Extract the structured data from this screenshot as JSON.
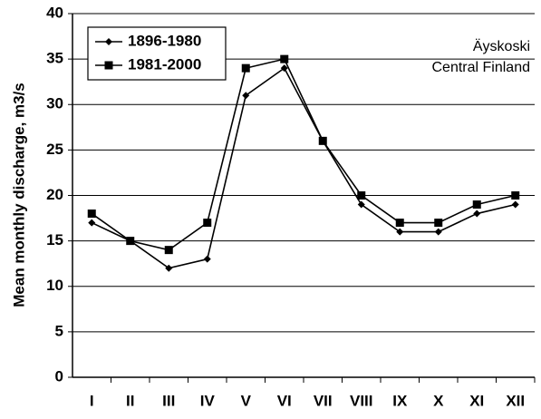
{
  "chart_data": {
    "type": "line",
    "y_label": "Mean monthly discharge, m3/s",
    "annotations": [
      "Äyskoski",
      "Central Finland"
    ],
    "categories": [
      "I",
      "II",
      "III",
      "IV",
      "V",
      "VI",
      "VII",
      "VIII",
      "IX",
      "X",
      "XI",
      "XII"
    ],
    "series": [
      {
        "name": "1896-1980",
        "color": "#000000",
        "marker": "diamond",
        "values": [
          17,
          15,
          12,
          13,
          31,
          34,
          26,
          19,
          16,
          16,
          18,
          19
        ]
      },
      {
        "name": "1981-2000",
        "color": "#000000",
        "marker": "square",
        "values": [
          18,
          15,
          14,
          17,
          34,
          35,
          26,
          20,
          17,
          17,
          19,
          20
        ]
      }
    ],
    "ylim": [
      0,
      40
    ],
    "yticks": [
      0,
      5,
      10,
      15,
      20,
      25,
      30,
      35,
      40
    ],
    "grid": true,
    "legend": "upper left"
  }
}
